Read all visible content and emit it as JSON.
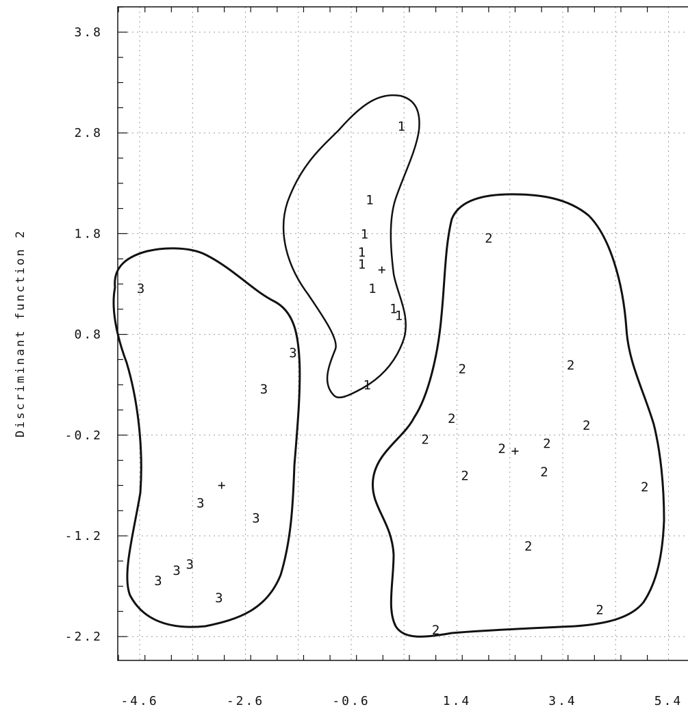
{
  "chart_data": {
    "type": "scatter",
    "title": "",
    "xlabel": "",
    "ylabel": "Discriminant function 2",
    "xlim": [
      -5.0,
      5.4
    ],
    "ylim": [
      -2.45,
      4.1
    ],
    "x_ticks": [
      -4.6,
      -2.6,
      -0.6,
      1.4,
      3.4,
      5.4
    ],
    "x_tick_labels": [
      "-4.6",
      "-2.6",
      "-0.6",
      "1.4",
      "3.4",
      "5.4"
    ],
    "y_ticks": [
      3.8,
      2.8,
      1.8,
      0.8,
      -0.2,
      -1.2,
      -2.2
    ],
    "y_tick_labels": [
      "3.8",
      "2.8",
      "1.8",
      "0.8",
      "-0.2",
      "-1.2",
      "-2.2"
    ],
    "grid": true,
    "series": [
      {
        "label": "1",
        "points": [
          [
            0.35,
            2.87
          ],
          [
            -0.25,
            2.14
          ],
          [
            -0.35,
            1.8
          ],
          [
            -0.4,
            1.62
          ],
          [
            -0.4,
            1.5
          ],
          [
            -0.2,
            1.26
          ],
          [
            0.2,
            1.06
          ],
          [
            0.3,
            0.99
          ],
          [
            -0.3,
            0.3
          ]
        ]
      },
      {
        "label": "2",
        "points": [
          [
            2.0,
            1.76
          ],
          [
            1.5,
            0.46
          ],
          [
            3.55,
            0.5
          ],
          [
            1.3,
            -0.03
          ],
          [
            3.85,
            -0.1
          ],
          [
            0.8,
            -0.24
          ],
          [
            2.25,
            -0.33
          ],
          [
            3.1,
            -0.28
          ],
          [
            1.55,
            -0.6
          ],
          [
            3.05,
            -0.56
          ],
          [
            4.95,
            -0.71
          ],
          [
            2.75,
            -1.3
          ],
          [
            4.1,
            -1.93
          ],
          [
            1.0,
            -2.13
          ]
        ]
      },
      {
        "label": "3",
        "points": [
          [
            -4.58,
            1.26
          ],
          [
            -1.7,
            0.62
          ],
          [
            -2.25,
            0.26
          ],
          [
            -3.45,
            -0.87
          ],
          [
            -2.4,
            -1.02
          ],
          [
            -3.65,
            -1.48
          ],
          [
            -3.9,
            -1.54
          ],
          [
            -4.25,
            -1.64
          ],
          [
            -3.1,
            -1.81
          ]
        ]
      }
    ],
    "centroids": [
      [
        -0.02,
        1.44
      ],
      [
        2.5,
        -0.36
      ],
      [
        -3.05,
        -0.7
      ]
    ]
  }
}
